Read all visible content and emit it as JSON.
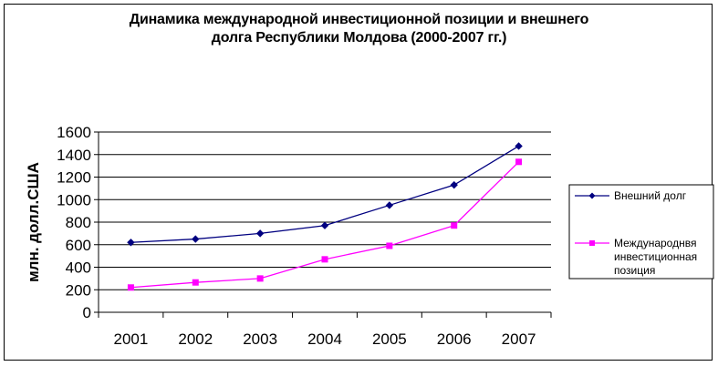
{
  "chart_data": {
    "type": "line",
    "title_lines": [
      "Динамика международной инвестиционной позиции и внешнего",
      "долга Республики Молдова (2000-2007 гг.)"
    ],
    "xlabel": "",
    "ylabel": "млн. долл.США",
    "categories": [
      "2001",
      "2002",
      "2003",
      "2004",
      "2005",
      "2006",
      "2007"
    ],
    "ylim": [
      0,
      1600
    ],
    "yticks": [
      "0",
      "200",
      "400",
      "600",
      "800",
      "1000",
      "1200",
      "1400",
      "1600"
    ],
    "grid": true,
    "legend_position": "right",
    "series": [
      {
        "name": "Внешний долг",
        "name_lines": [
          "Внешний долг"
        ],
        "color": "#000080",
        "marker": "diamond",
        "values": [
          620,
          650,
          700,
          770,
          950,
          1130,
          1475
        ]
      },
      {
        "name": "Международнвя инвестиционная позиция",
        "name_lines": [
          "Международнвя",
          "инвестиционная",
          "позиция"
        ],
        "color": "#ff00ff",
        "marker": "square",
        "values": [
          220,
          265,
          300,
          470,
          590,
          770,
          1335
        ]
      }
    ]
  }
}
